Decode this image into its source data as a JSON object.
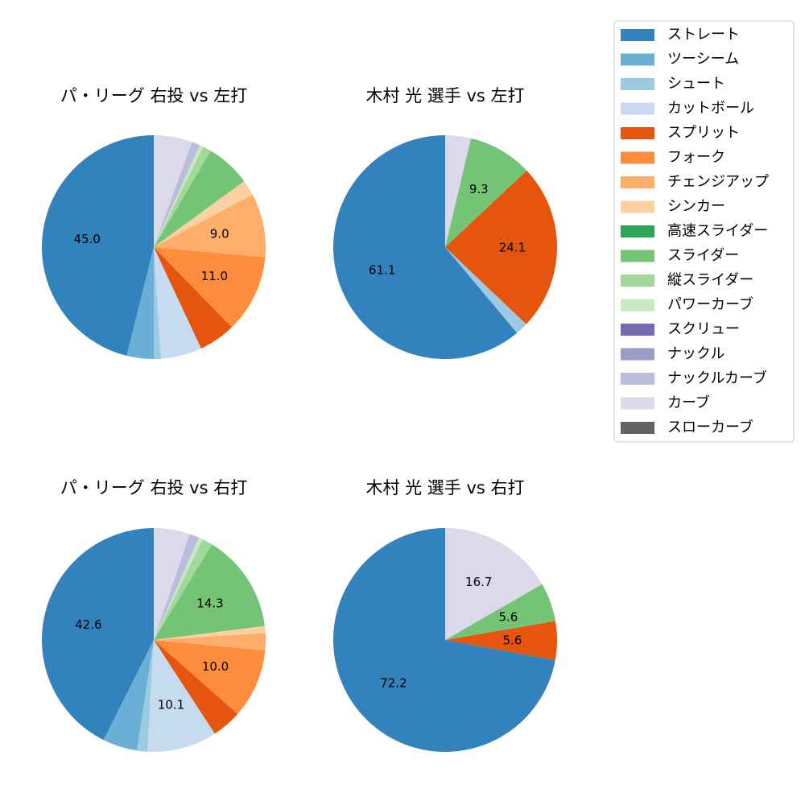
{
  "legend": {
    "items": [
      {
        "label": "ストレート",
        "color": "#3182bd"
      },
      {
        "label": "ツーシーム",
        "color": "#6baed6"
      },
      {
        "label": "シュート",
        "color": "#9ecae1"
      },
      {
        "label": "カットボール",
        "color": "#c6dbef"
      },
      {
        "label": "スプリット",
        "color": "#e6550d"
      },
      {
        "label": "フォーク",
        "color": "#fd8d3c"
      },
      {
        "label": "チェンジアップ",
        "color": "#fdae6b"
      },
      {
        "label": "シンカー",
        "color": "#fdd0a2"
      },
      {
        "label": "高速スライダー",
        "color": "#31a354"
      },
      {
        "label": "スライダー",
        "color": "#74c476"
      },
      {
        "label": "縦スライダー",
        "color": "#a1d99b"
      },
      {
        "label": "パワーカーブ",
        "color": "#c7e9c0"
      },
      {
        "label": "スクリュー",
        "color": "#756bb1"
      },
      {
        "label": "ナックル",
        "color": "#9e9ac8"
      },
      {
        "label": "ナックルカーブ",
        "color": "#bcbddc"
      },
      {
        "label": "カーブ",
        "color": "#dadaeb"
      },
      {
        "label": "スローカーブ",
        "color": "#636363"
      }
    ]
  },
  "chart_data": [
    {
      "type": "pie",
      "title": "パ・リーグ 右投 vs 左打",
      "slices": [
        {
          "label": "ストレート",
          "value": 45.0,
          "show_label": true
        },
        {
          "label": "ツーシーム",
          "value": 3.8,
          "show_label": false
        },
        {
          "label": "シュート",
          "value": 1.0,
          "show_label": false
        },
        {
          "label": "カットボール",
          "value": 5.8,
          "show_label": false
        },
        {
          "label": "スプリット",
          "value": 5.2,
          "show_label": false
        },
        {
          "label": "フォーク",
          "value": 11.0,
          "show_label": true
        },
        {
          "label": "チェンジアップ",
          "value": 9.0,
          "show_label": true
        },
        {
          "label": "シンカー",
          "value": 2.2,
          "show_label": false
        },
        {
          "label": "スライダー",
          "value": 6.3,
          "show_label": false
        },
        {
          "label": "縦スライダー",
          "value": 1.2,
          "show_label": false
        },
        {
          "label": "パワーカーブ",
          "value": 0.5,
          "show_label": false
        },
        {
          "label": "ナックルカーブ",
          "value": 1.2,
          "show_label": false
        },
        {
          "label": "カーブ",
          "value": 5.4,
          "show_label": false
        }
      ]
    },
    {
      "type": "pie",
      "title": "木村 光 選手 vs 左打",
      "slices": [
        {
          "label": "ストレート",
          "value": 61.1,
          "show_label": true
        },
        {
          "label": "シュート",
          "value": 1.8,
          "show_label": false
        },
        {
          "label": "スプリット",
          "value": 24.1,
          "show_label": true
        },
        {
          "label": "スライダー",
          "value": 9.3,
          "show_label": true
        },
        {
          "label": "カーブ",
          "value": 3.7,
          "show_label": false
        }
      ]
    },
    {
      "type": "pie",
      "title": "パ・リーグ 右投 vs 右打",
      "slices": [
        {
          "label": "ストレート",
          "value": 42.6,
          "show_label": true
        },
        {
          "label": "ツーシーム",
          "value": 5.0,
          "show_label": false
        },
        {
          "label": "シュート",
          "value": 1.5,
          "show_label": false
        },
        {
          "label": "カットボール",
          "value": 10.1,
          "show_label": true
        },
        {
          "label": "スプリット",
          "value": 4.3,
          "show_label": false
        },
        {
          "label": "フォーク",
          "value": 10.0,
          "show_label": true
        },
        {
          "label": "チェンジアップ",
          "value": 2.5,
          "show_label": false
        },
        {
          "label": "シンカー",
          "value": 1.0,
          "show_label": false
        },
        {
          "label": "スライダー",
          "value": 14.3,
          "show_label": true
        },
        {
          "label": "縦スライダー",
          "value": 1.5,
          "show_label": false
        },
        {
          "label": "パワーカーブ",
          "value": 0.6,
          "show_label": false
        },
        {
          "label": "ナックルカーブ",
          "value": 1.4,
          "show_label": false
        },
        {
          "label": "カーブ",
          "value": 5.2,
          "show_label": false
        }
      ]
    },
    {
      "type": "pie",
      "title": "木村 光 選手 vs 右打",
      "slices": [
        {
          "label": "ストレート",
          "value": 72.2,
          "show_label": true
        },
        {
          "label": "スプリット",
          "value": 5.6,
          "show_label": true
        },
        {
          "label": "スライダー",
          "value": 5.6,
          "show_label": true
        },
        {
          "label": "カーブ",
          "value": 16.7,
          "show_label": true
        }
      ]
    }
  ]
}
